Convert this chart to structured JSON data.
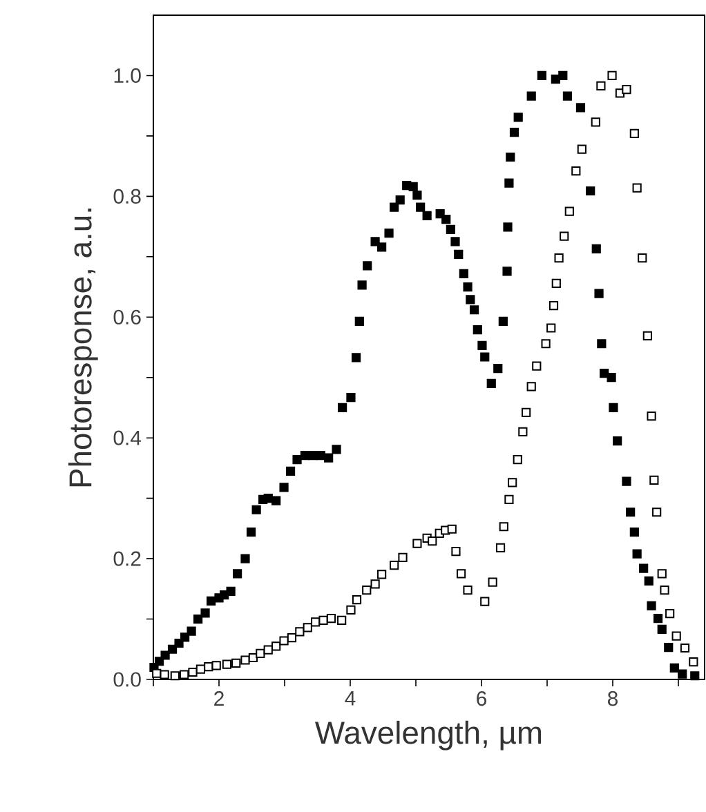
{
  "chart_data": {
    "type": "scatter",
    "xlabel": "Wavelength, µm",
    "ylabel": "Photoresponse, a.u.",
    "xlim": [
      1,
      9.4
    ],
    "ylim": [
      0,
      1.1
    ],
    "xticks": [
      {
        "value": 1,
        "label": null
      },
      2,
      {
        "value": 3,
        "label": null
      },
      4,
      {
        "value": 5,
        "label": null
      },
      6,
      {
        "value": 7,
        "label": null
      },
      8,
      {
        "value": 9,
        "label": null
      }
    ],
    "yticks": [
      {
        "value": 0,
        "label": "0.0"
      },
      {
        "value": 0.1,
        "label": null
      },
      0.2,
      {
        "value": 0.3,
        "label": null
      },
      0.4,
      {
        "value": 0.5,
        "label": null
      },
      0.6,
      {
        "value": 0.7,
        "label": null
      },
      0.8,
      {
        "value": 0.9,
        "label": null
      },
      {
        "value": 1.0,
        "label": "1.0"
      }
    ],
    "marker": "square",
    "series": [
      {
        "color": "#000000",
        "x": [
          1.01,
          1.09,
          1.18,
          1.29,
          1.39,
          1.48,
          1.58,
          1.68,
          1.79,
          1.88,
          2.0,
          2.08,
          2.18,
          2.28,
          2.4,
          2.49,
          2.57,
          2.67,
          2.75,
          2.87,
          2.99,
          3.09,
          3.19,
          3.31,
          3.43,
          3.55,
          3.67,
          3.79,
          3.88,
          4.01,
          4.09,
          4.14,
          4.18,
          4.26,
          4.38,
          4.48,
          4.59,
          4.67,
          4.76,
          4.86,
          4.96,
          5.02,
          5.07,
          5.17,
          5.37,
          5.46,
          5.53,
          5.6,
          5.65,
          5.73,
          5.79,
          5.83,
          5.89,
          5.94,
          6.01,
          6.05,
          6.15,
          6.25,
          6.33,
          6.39,
          6.4,
          6.42,
          6.44,
          6.5,
          6.56,
          6.76,
          6.92,
          7.13,
          7.24,
          7.31,
          7.51,
          7.66,
          7.75,
          7.79,
          7.83,
          7.87,
          7.98,
          8.01,
          8.07,
          8.21,
          8.27,
          8.33,
          8.37,
          8.47,
          8.55,
          8.59,
          8.69,
          8.75,
          8.85,
          8.94,
          9.06,
          9.25
        ],
        "values": [
          0.02,
          0.03,
          0.04,
          0.05,
          0.06,
          0.07,
          0.08,
          0.1,
          0.11,
          0.13,
          0.135,
          0.14,
          0.146,
          0.175,
          0.2,
          0.244,
          0.281,
          0.298,
          0.3,
          0.296,
          0.318,
          0.345,
          0.364,
          0.371,
          0.371,
          0.371,
          0.367,
          0.381,
          0.45,
          0.467,
          0.533,
          0.593,
          0.653,
          0.685,
          0.725,
          0.716,
          0.739,
          0.782,
          0.794,
          0.818,
          0.816,
          0.802,
          0.782,
          0.768,
          0.771,
          0.762,
          0.745,
          0.725,
          0.704,
          0.672,
          0.65,
          0.629,
          0.612,
          0.579,
          0.553,
          0.534,
          0.49,
          0.515,
          0.593,
          0.676,
          0.749,
          0.822,
          0.865,
          0.906,
          0.931,
          0.966,
          1.0,
          0.994,
          1.0,
          0.966,
          0.947,
          0.809,
          0.713,
          0.639,
          0.556,
          0.507,
          0.5,
          0.45,
          0.395,
          0.328,
          0.277,
          0.244,
          0.208,
          0.184,
          0.163,
          0.122,
          0.101,
          0.083,
          0.053,
          0.019,
          0.009,
          0.006
        ]
      },
      {
        "color": "#000000",
        "x": [
          1.05,
          1.17,
          1.33,
          1.47,
          1.6,
          1.72,
          1.84,
          1.96,
          2.12,
          2.26,
          2.4,
          2.52,
          2.63,
          2.75,
          2.87,
          2.99,
          3.11,
          3.23,
          3.35,
          3.47,
          3.59,
          3.71,
          3.87,
          4.01,
          4.1,
          4.25,
          4.38,
          4.48,
          4.67,
          4.8,
          5.02,
          5.17,
          5.25,
          5.36,
          5.45,
          5.55,
          5.61,
          5.69,
          5.79,
          6.05,
          6.17,
          6.29,
          6.34,
          6.42,
          6.47,
          6.55,
          6.63,
          6.68,
          6.76,
          6.84,
          6.98,
          7.06,
          7.1,
          7.14,
          7.18,
          7.26,
          7.34,
          7.44,
          7.53,
          7.74,
          7.82,
          7.99,
          8.11,
          8.21,
          8.33,
          8.37,
          8.45,
          8.53,
          8.59,
          8.63,
          8.67,
          8.75,
          8.79,
          8.87,
          8.97,
          9.1,
          9.23
        ],
        "values": [
          0.01,
          0.008,
          0.006,
          0.008,
          0.012,
          0.017,
          0.021,
          0.023,
          0.025,
          0.027,
          0.032,
          0.036,
          0.043,
          0.049,
          0.055,
          0.064,
          0.069,
          0.079,
          0.086,
          0.095,
          0.098,
          0.101,
          0.098,
          0.115,
          0.132,
          0.148,
          0.158,
          0.174,
          0.189,
          0.202,
          0.225,
          0.234,
          0.229,
          0.242,
          0.247,
          0.249,
          0.212,
          0.175,
          0.148,
          0.129,
          0.161,
          0.218,
          0.253,
          0.298,
          0.326,
          0.364,
          0.41,
          0.442,
          0.485,
          0.519,
          0.556,
          0.582,
          0.619,
          0.656,
          0.698,
          0.734,
          0.775,
          0.842,
          0.878,
          0.923,
          0.983,
          1.0,
          0.971,
          0.977,
          0.904,
          0.814,
          0.698,
          0.569,
          0.436,
          0.33,
          0.277,
          0.175,
          0.148,
          0.109,
          0.072,
          0.052,
          0.029
        ]
      }
    ]
  }
}
